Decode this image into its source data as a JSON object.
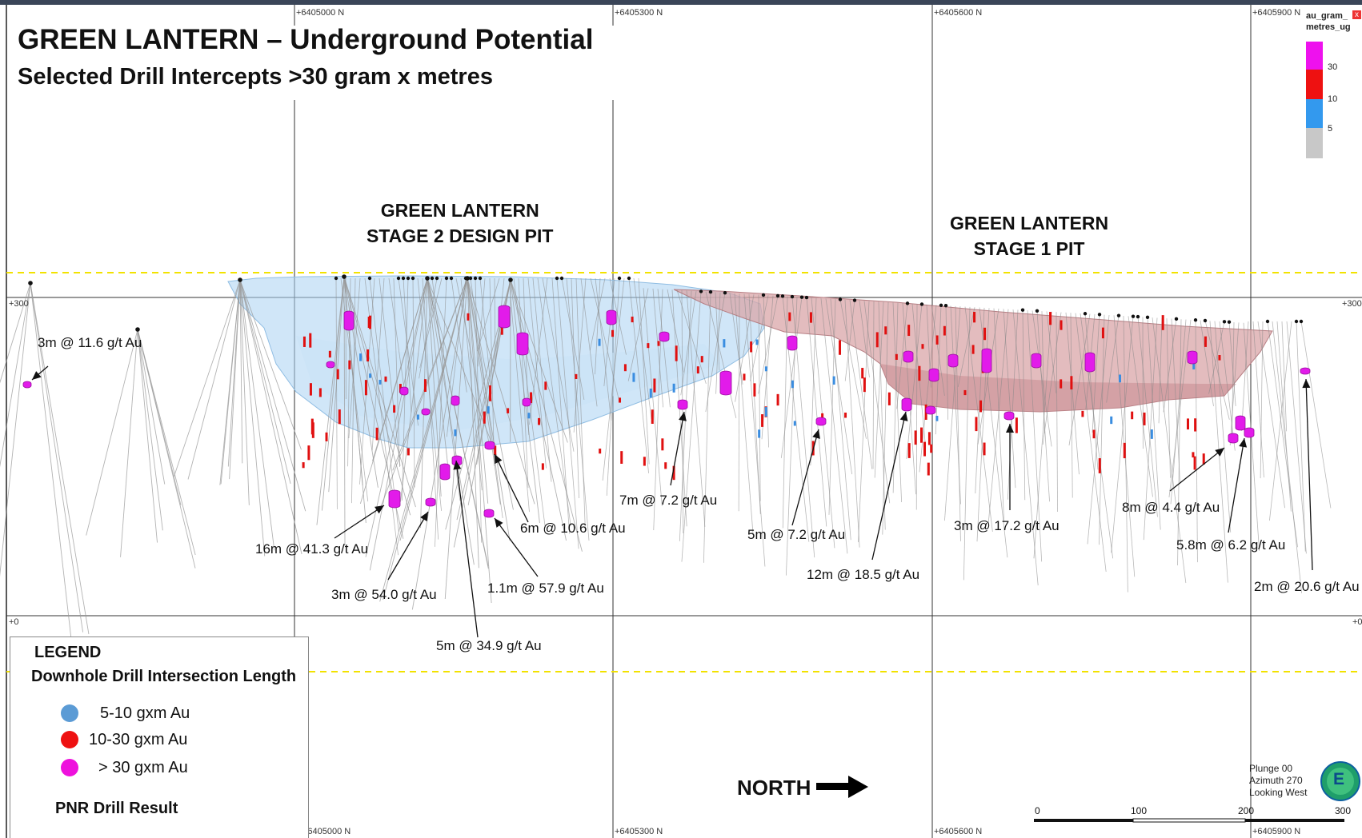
{
  "title": "GREEN LANTERN – Underground Potential",
  "subtitle": "Selected Drill Intercepts >30 gram x metres",
  "pits": [
    {
      "line1": "GREEN LANTERN",
      "line2": "STAGE 2 DESIGN PIT"
    },
    {
      "line1": "GREEN LANTERN",
      "line2": "STAGE 1 PIT"
    }
  ],
  "northings_top": [
    "+6405000 N",
    "+6405300 N",
    "+6405600 N",
    "+6405900 N"
  ],
  "northings_bottom": [
    "+6405000 N",
    "+6405300 N",
    "+6405600 N",
    "+6405900 N"
  ],
  "elevations": [
    "+300",
    "+0"
  ],
  "elevations_right": [
    "+300",
    "+0"
  ],
  "intercepts": [
    "3m @ 11.6 g/t Au",
    "16m @ 41.3 g/t Au",
    "3m @ 54.0 g/t Au",
    "5m @ 34.9 g/t Au",
    "6m @ 10.6 g/t Au",
    "1.1m @ 57.9 g/t Au",
    "7m @ 7.2 g/t Au",
    "5m @ 7.2 g/t Au",
    "12m @ 18.5 g/t Au",
    "3m @ 17.2 g/t Au",
    "8m @ 4.4 g/t Au",
    "5.8m @ 6.2 g/t Au",
    "2m @ 20.6 g/t Au"
  ],
  "legend": {
    "title": "LEGEND",
    "subtitle": "Downhole Drill Intersection Length",
    "items": [
      {
        "label": "5-10 gxm Au",
        "color": "#5b9bd5"
      },
      {
        "label": "10-30 gxm Au",
        "color": "#ee1111"
      },
      {
        "label": "> 30 gxm Au",
        "color": "#ee11dd"
      }
    ],
    "footer": "PNR  Drill Result"
  },
  "north_label": "NORTH",
  "orientation": {
    "plunge": "Plunge 00",
    "azimuth": "Azimuth 270",
    "looking": "Looking West"
  },
  "compass_letter": "E",
  "colorbar": {
    "title_line1": "au_gram_",
    "title_line2": "metres_ug",
    "ticks": [
      "30",
      "10",
      "5"
    ],
    "colors": [
      "#ee11ee",
      "#ee1111",
      "#3399ee",
      "#c8c8c8"
    ]
  },
  "scale_bar": {
    "ticks": [
      "0",
      "100",
      "200",
      "300"
    ]
  },
  "close_glyph": "x"
}
